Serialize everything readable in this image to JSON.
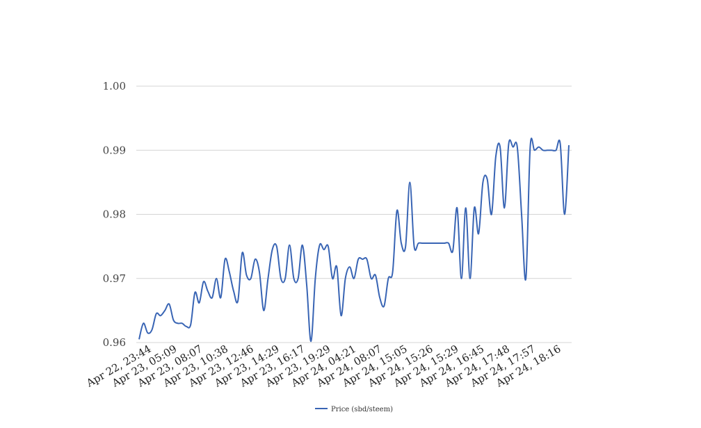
{
  "chart_data": {
    "type": "line",
    "title": "",
    "xlabel": "",
    "ylabel": "",
    "ylim": [
      0.96,
      1.0
    ],
    "y_ticks": [
      "0.96",
      "0.97",
      "0.98",
      "0.99",
      "1.00"
    ],
    "x_tick_labels": [
      "Apr 22, 23:44",
      "Apr 23, 05:09",
      "Apr 23, 08:07",
      "Apr 23, 10:38",
      "Apr 23, 12:46",
      "Apr 23, 14:29",
      "Apr 23, 16:17",
      "Apr 23, 19:29",
      "Apr 24, 04:21",
      "Apr 24, 08:07",
      "Apr 24, 15:05",
      "Apr 24, 15:26",
      "Apr 24, 15:29",
      "Apr 24, 16:45",
      "Apr 24, 17:48",
      "Apr 24, 17:57",
      "Apr 24, 18:16"
    ],
    "grid": true,
    "legend_position": "bottom",
    "series": [
      {
        "name": "Price (sbd/steem)",
        "color": "#3864b4",
        "values": [
          0.9605,
          0.963,
          0.9615,
          0.962,
          0.9645,
          0.9642,
          0.965,
          0.966,
          0.9635,
          0.963,
          0.963,
          0.9625,
          0.9628,
          0.9678,
          0.9662,
          0.9695,
          0.968,
          0.967,
          0.97,
          0.967,
          0.973,
          0.971,
          0.968,
          0.9665,
          0.974,
          0.9705,
          0.97,
          0.973,
          0.971,
          0.965,
          0.97,
          0.9745,
          0.975,
          0.97,
          0.97,
          0.9752,
          0.97,
          0.97,
          0.9752,
          0.969,
          0.9602,
          0.97,
          0.9752,
          0.9745,
          0.975,
          0.97,
          0.9718,
          0.9642,
          0.97,
          0.9718,
          0.97,
          0.973,
          0.973,
          0.973,
          0.97,
          0.9705,
          0.967,
          0.9657,
          0.97,
          0.971,
          0.9806,
          0.9755,
          0.975,
          0.985,
          0.975,
          0.9755,
          0.9755,
          0.9755,
          0.9755,
          0.9755,
          0.9755,
          0.9755,
          0.9755,
          0.9743,
          0.981,
          0.97,
          0.981,
          0.97,
          0.981,
          0.977,
          0.985,
          0.9855,
          0.98,
          0.989,
          0.9905,
          0.981,
          0.991,
          0.9905,
          0.9905,
          0.98,
          0.97,
          0.9905,
          0.99,
          0.9905,
          0.99,
          0.99,
          0.99,
          0.99,
          0.991,
          0.98,
          0.9908
        ]
      }
    ]
  }
}
